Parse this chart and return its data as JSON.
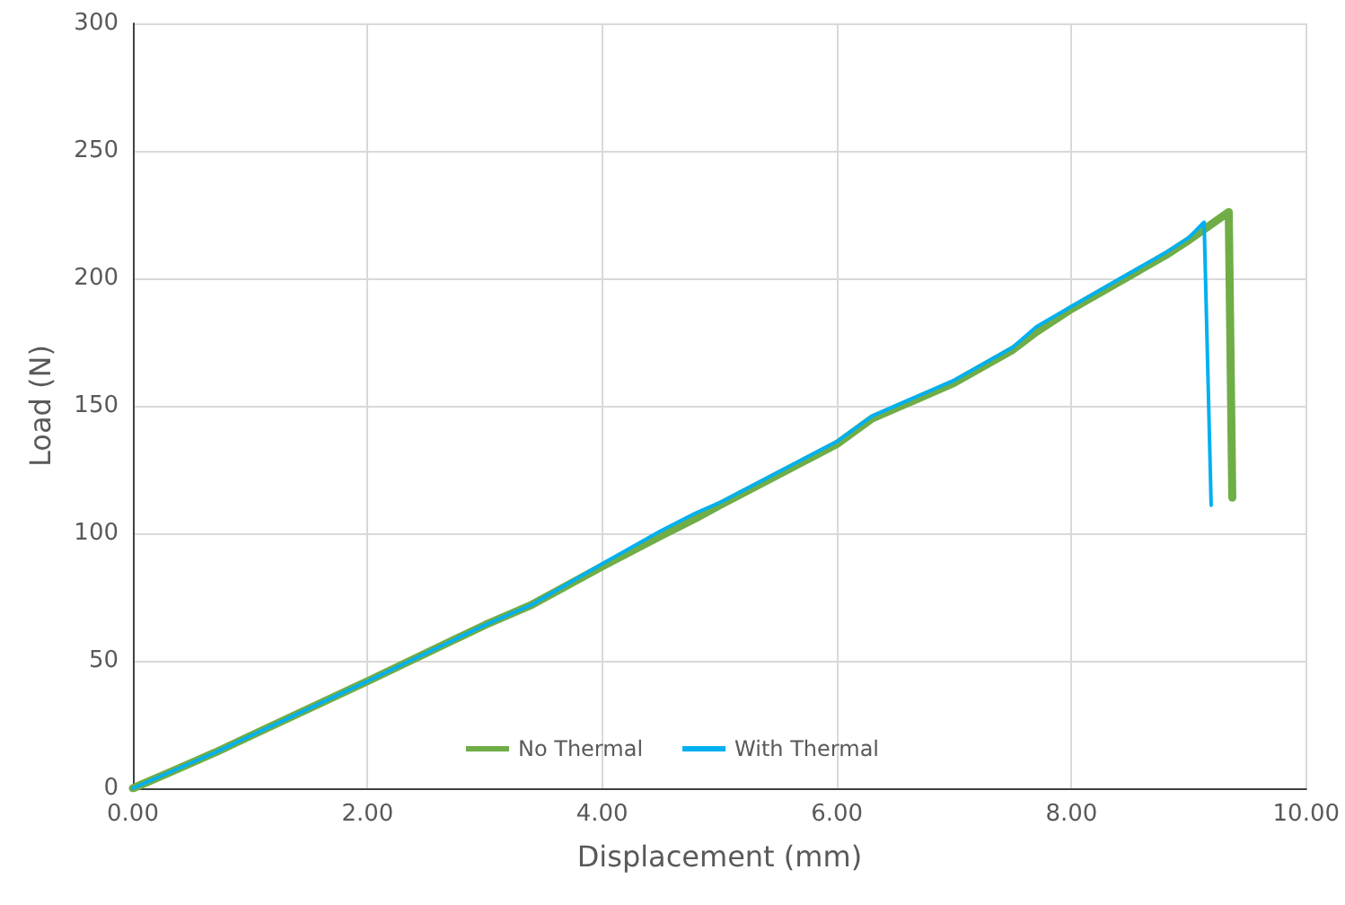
{
  "chart_data": {
    "type": "line",
    "xlabel": "Displacement (mm)",
    "ylabel": "Load (N)",
    "xlim": [
      0,
      10
    ],
    "xticks": [
      {
        "value": 0,
        "label": "0.00"
      },
      {
        "value": 2,
        "label": "2.00"
      },
      {
        "value": 4,
        "label": "4.00"
      },
      {
        "value": 6,
        "label": "6.00"
      },
      {
        "value": 8,
        "label": "8.00"
      },
      {
        "value": 10,
        "label": "10.00"
      }
    ],
    "ylim": [
      0,
      300
    ],
    "yticks": [
      0,
      50,
      100,
      150,
      200,
      250,
      300
    ],
    "grid": true,
    "legend": "bottom",
    "marker": "none",
    "line_style": "solid",
    "series": [
      {
        "name": "No Thermal",
        "color": "#70ad47",
        "x": [
          0,
          0.4,
          0.7,
          1,
          2,
          3,
          3.4,
          4,
          4.5,
          4.8,
          5,
          6,
          6.3,
          7,
          7.5,
          7.7,
          8,
          8.8,
          9,
          9.34,
          9.37
        ],
        "values": [
          0,
          8,
          14,
          20.5,
          42,
          64,
          72,
          87,
          99,
          106,
          111,
          135,
          145,
          159,
          172,
          179,
          188,
          209,
          215,
          226,
          114
        ]
      },
      {
        "name": "With Thermal",
        "color": "#00b0f0",
        "x": [
          0,
          0.4,
          0.7,
          1,
          2,
          3,
          3.4,
          4,
          4.5,
          4.8,
          5,
          6,
          6.3,
          7,
          7.5,
          7.7,
          8,
          8.8,
          9,
          9.13,
          9.19
        ],
        "values": [
          0,
          8,
          14,
          20.5,
          42,
          64,
          72,
          88,
          101,
          108,
          112,
          136,
          146,
          160,
          173,
          181,
          189,
          210,
          216,
          222,
          111
        ]
      }
    ]
  }
}
